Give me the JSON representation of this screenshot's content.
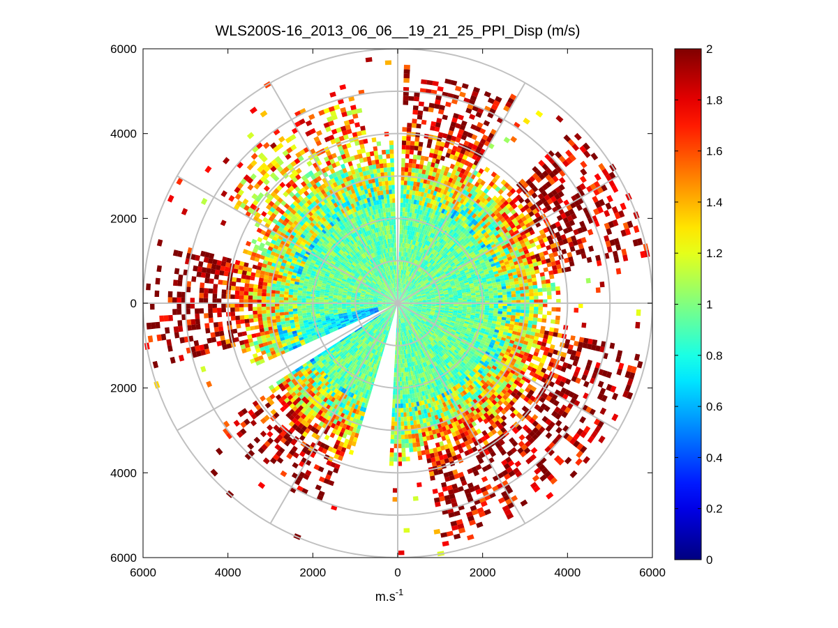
{
  "chart_data": {
    "type": "heatmap",
    "subtype": "polar PPI scan",
    "title": "WLS200S-16_2013_06_06__19_21_25_PPI_Disp (m/s)",
    "xlabel_main": "m.s",
    "xlabel_superscript": "-1",
    "ylabel": "",
    "xlim": [
      -6000,
      6000
    ],
    "ylim": [
      -6000,
      6000
    ],
    "x_tick_values": [
      -6000,
      -4000,
      -2000,
      0,
      2000,
      4000,
      6000
    ],
    "x_tick_labels": [
      "6000",
      "4000",
      "2000",
      "0",
      "2000",
      "4000",
      "6000"
    ],
    "y_tick_values": [
      6000,
      4000,
      2000,
      0,
      -2000,
      -4000,
      -6000
    ],
    "y_tick_labels": [
      "6000",
      "4000",
      "2000",
      "0",
      "2000",
      "4000",
      "6000"
    ],
    "polar_rings_m": [
      1000,
      2000,
      3000,
      4000,
      5000,
      6000
    ],
    "polar_spokes_deg": [
      0,
      30,
      60,
      90,
      120,
      150,
      180,
      210,
      240,
      270,
      300,
      330
    ],
    "max_range_m": 6000,
    "grid": true,
    "colormap": "jet",
    "colorbar": {
      "min": 0,
      "max": 2,
      "tick_values": [
        0,
        0.2,
        0.4,
        0.6,
        0.8,
        1,
        1.2,
        1.4,
        1.6,
        1.8,
        2
      ],
      "tick_labels": [
        "0",
        "0.2",
        "0.4",
        "0.6",
        "0.8",
        "1",
        "1.2",
        "1.4",
        "1.6",
        "1.8",
        "2"
      ]
    },
    "data_summary": {
      "dense_coverage_range_m": 3300,
      "typical_inner_value": 0.95,
      "typical_edge_value": 1.9,
      "sectors": [
        {
          "name": "north-north-east",
          "az_from_deg": 0,
          "az_to_deg": 30,
          "max_range_m": 5600,
          "edge_value": 1.9
        },
        {
          "name": "east-north-east",
          "az_from_deg": 45,
          "az_to_deg": 80,
          "max_range_m": 6000,
          "edge_value": 2.0
        },
        {
          "name": "south-east",
          "az_from_deg": 100,
          "az_to_deg": 170,
          "max_range_m": 5800,
          "edge_value": 2.0
        },
        {
          "name": "south-west",
          "az_from_deg": 200,
          "az_to_deg": 235,
          "max_range_m": 5000,
          "edge_value": 2.0
        },
        {
          "name": "west",
          "az_from_deg": 255,
          "az_to_deg": 285,
          "max_range_m": 5900,
          "edge_value": 2.0
        },
        {
          "name": "north-west",
          "az_from_deg": 300,
          "az_to_deg": 350,
          "max_range_m": 4900,
          "edge_value": 1.5
        }
      ],
      "gaps": [
        {
          "name": "north-beam-gap",
          "az_from_deg": 359.2,
          "az_to_deg": 1.5
        },
        {
          "name": "south-south-west-gap",
          "az_from_deg": 183,
          "az_to_deg": 196
        },
        {
          "name": "south-west-gap",
          "az_from_deg": 237,
          "az_to_deg": 246
        }
      ],
      "low_value_region": {
        "az_from_deg": 235,
        "az_to_deg": 260,
        "range_m": [
          400,
          2800
        ],
        "value": 0.55
      }
    }
  }
}
